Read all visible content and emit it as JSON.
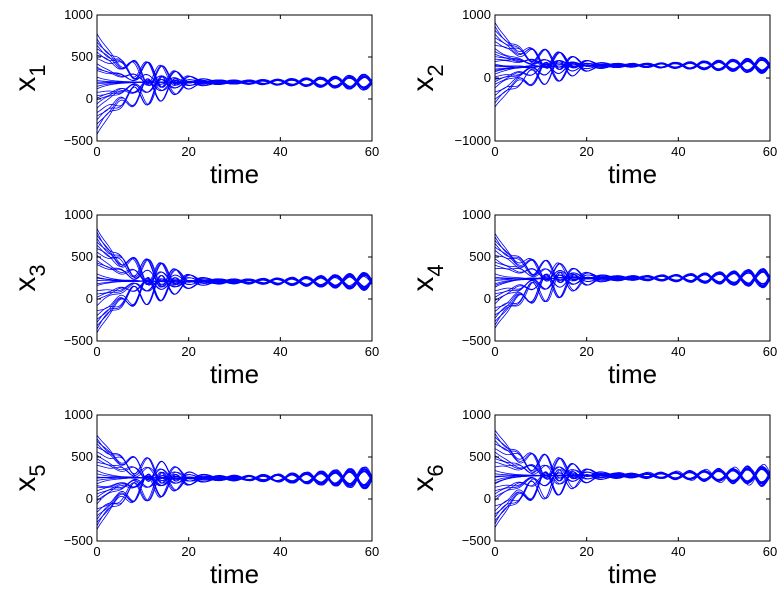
{
  "chart_data": [
    {
      "type": "line",
      "ylabel_main": "x",
      "ylabel_sub": "1",
      "xlabel": "time",
      "xlim": [
        0,
        60
      ],
      "ylim": [
        -500,
        1000
      ],
      "xticks": [
        0,
        20,
        40,
        60
      ],
      "yticks": [
        -500,
        0,
        500,
        1000
      ],
      "xtick_labels": [
        "0",
        "20",
        "40",
        "60"
      ],
      "ytick_labels": [
        "−500",
        "0",
        "500",
        "1000"
      ],
      "grid": false,
      "color": "#0000ff",
      "series_count": 30,
      "initial_values": [
        780,
        720,
        680,
        640,
        600,
        560,
        520,
        480,
        420,
        380,
        360,
        340,
        260,
        220,
        180,
        120,
        80,
        40,
        10,
        -10,
        -60,
        -110,
        -160,
        -200,
        -250,
        -300,
        -360,
        -420,
        200,
        150
      ],
      "group_centers": [
        600,
        350,
        200,
        0,
        -250
      ],
      "final_value": 200,
      "oscillation_period": 6.3,
      "damping_time": 8,
      "late_amplitude": [
        0,
        20,
        40,
        80
      ]
    },
    {
      "type": "line",
      "ylabel_main": "x",
      "ylabel_sub": "2",
      "xlabel": "time",
      "xlim": [
        0,
        60
      ],
      "ylim": [
        -1000,
        1000
      ],
      "xticks": [
        0,
        20,
        40,
        60
      ],
      "yticks": [
        -1000,
        0,
        1000
      ],
      "xtick_labels": [
        "0",
        "20",
        "40",
        "60"
      ],
      "ytick_labels": [
        "−1000",
        "0",
        "1000"
      ],
      "grid": false,
      "color": "#0000ff",
      "series_count": 30,
      "initial_values": [
        880,
        820,
        760,
        700,
        640,
        580,
        520,
        470,
        420,
        380,
        340,
        300,
        260,
        220,
        180,
        140,
        100,
        60,
        20,
        -20,
        -60,
        -100,
        -160,
        -220,
        -280,
        -340,
        -400,
        -460,
        200,
        120
      ],
      "group_centers": [
        620,
        350,
        150,
        -50,
        -300
      ],
      "final_value": 200,
      "oscillation_period": 6.3,
      "damping_time": 8,
      "late_amplitude": [
        0,
        30,
        60,
        110
      ]
    },
    {
      "type": "line",
      "ylabel_main": "x",
      "ylabel_sub": "3",
      "xlabel": "time",
      "xlim": [
        0,
        60
      ],
      "ylim": [
        -500,
        1000
      ],
      "xticks": [
        0,
        20,
        40,
        60
      ],
      "yticks": [
        -500,
        0,
        500,
        1000
      ],
      "xtick_labels": [
        "0",
        "20",
        "40",
        "60"
      ],
      "ytick_labels": [
        "−500",
        "0",
        "500",
        "1000"
      ],
      "grid": false,
      "color": "#0000ff",
      "series_count": 30,
      "initial_values": [
        840,
        800,
        760,
        720,
        680,
        640,
        600,
        560,
        520,
        460,
        430,
        410,
        300,
        260,
        220,
        160,
        100,
        60,
        20,
        -10,
        -80,
        -140,
        -200,
        -240,
        -280,
        -320,
        -360,
        -400,
        250,
        180
      ],
      "group_centers": [
        650,
        430,
        220,
        20,
        -250
      ],
      "final_value": 210,
      "oscillation_period": 6.3,
      "damping_time": 8,
      "late_amplitude": [
        0,
        30,
        50,
        90
      ]
    },
    {
      "type": "line",
      "ylabel_main": "x",
      "ylabel_sub": "4",
      "xlabel": "time",
      "xlim": [
        0,
        60
      ],
      "ylim": [
        -500,
        1000
      ],
      "xticks": [
        0,
        20,
        40,
        60
      ],
      "yticks": [
        -500,
        0,
        500,
        1000
      ],
      "xtick_labels": [
        "0",
        "20",
        "40",
        "60"
      ],
      "ytick_labels": [
        "−500",
        "0",
        "500",
        "1000"
      ],
      "grid": false,
      "color": "#0000ff",
      "series_count": 30,
      "initial_values": [
        780,
        740,
        700,
        660,
        620,
        580,
        520,
        480,
        440,
        400,
        360,
        300,
        260,
        220,
        180,
        140,
        100,
        60,
        20,
        -20,
        -60,
        -100,
        -150,
        -190,
        -230,
        -270,
        -310,
        -350,
        240,
        160
      ],
      "group_centers": [
        600,
        430,
        230,
        30,
        -220
      ],
      "final_value": 250,
      "oscillation_period": 6.3,
      "damping_time": 8,
      "late_amplitude": [
        0,
        30,
        60,
        100
      ]
    },
    {
      "type": "line",
      "ylabel_main": "x",
      "ylabel_sub": "5",
      "xlabel": "time",
      "xlim": [
        0,
        60
      ],
      "ylim": [
        -500,
        1000
      ],
      "xticks": [
        0,
        20,
        40,
        60
      ],
      "yticks": [
        -500,
        0,
        500,
        1000
      ],
      "xtick_labels": [
        "0",
        "20",
        "40",
        "60"
      ],
      "ytick_labels": [
        "−500",
        "0",
        "500",
        "1000"
      ],
      "grid": false,
      "color": "#0000ff",
      "series_count": 30,
      "initial_values": [
        760,
        720,
        690,
        660,
        620,
        560,
        520,
        480,
        440,
        400,
        340,
        300,
        260,
        220,
        180,
        140,
        100,
        60,
        20,
        -20,
        -60,
        -120,
        -160,
        -200,
        -240,
        -280,
        -320,
        -360,
        250,
        160
      ],
      "group_centers": [
        650,
        460,
        260,
        70,
        -200
      ],
      "final_value": 250,
      "oscillation_period": 6.3,
      "damping_time": 8,
      "late_amplitude": [
        0,
        30,
        60,
        110
      ]
    },
    {
      "type": "line",
      "ylabel_main": "x",
      "ylabel_sub": "6",
      "xlabel": "time",
      "xlim": [
        0,
        60
      ],
      "ylim": [
        -500,
        1000
      ],
      "xticks": [
        0,
        20,
        40,
        60
      ],
      "yticks": [
        -500,
        0,
        500,
        1000
      ],
      "xtick_labels": [
        "0",
        "20",
        "40",
        "60"
      ],
      "ytick_labels": [
        "−500",
        "0",
        "500",
        "1000"
      ],
      "grid": false,
      "color": "#0000ff",
      "series_count": 30,
      "initial_values": [
        820,
        780,
        740,
        700,
        660,
        600,
        560,
        520,
        480,
        440,
        380,
        340,
        300,
        260,
        220,
        180,
        140,
        100,
        60,
        20,
        -20,
        -80,
        -140,
        -180,
        -220,
        -260,
        -300,
        -340,
        270,
        190
      ],
      "group_centers": [
        700,
        480,
        280,
        80,
        -180
      ],
      "final_value": 280,
      "oscillation_period": 6.3,
      "damping_time": 8,
      "late_amplitude": [
        0,
        30,
        60,
        110
      ]
    }
  ]
}
